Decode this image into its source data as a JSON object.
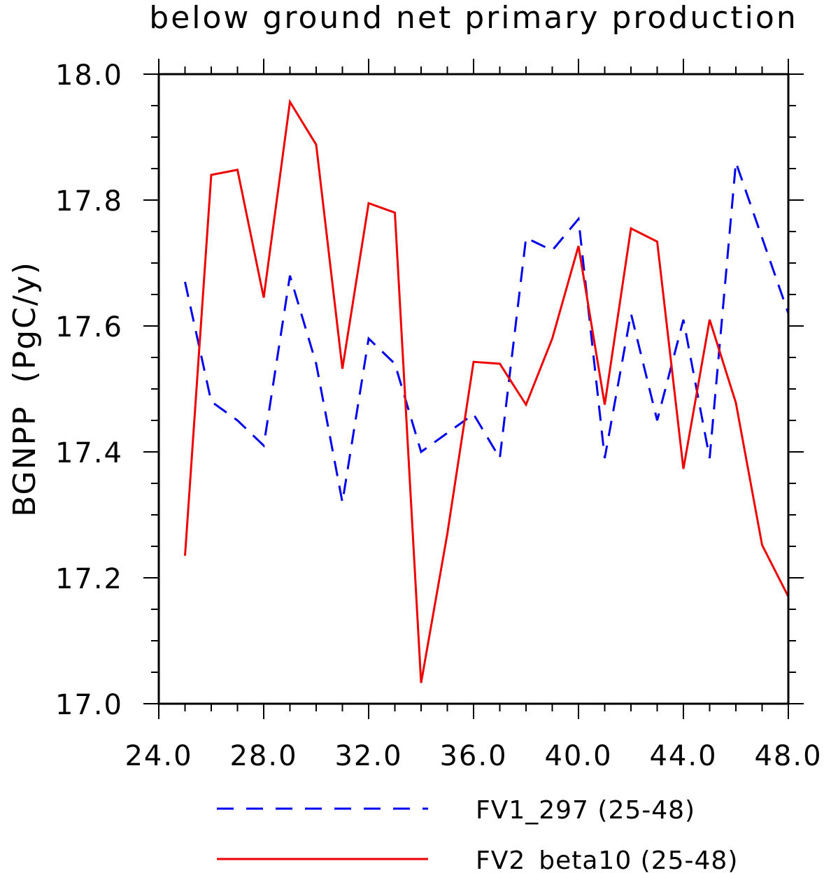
{
  "chart_data": {
    "type": "line",
    "title": "below ground net primary production",
    "ylabel": "BGNPP  (PgC/y)",
    "xlabel": "",
    "xlim": [
      24,
      48
    ],
    "ylim": [
      17.0,
      18.0
    ],
    "x_ticks": [
      "24.0",
      "28.0",
      "32.0",
      "36.0",
      "40.0",
      "44.0",
      "48.0"
    ],
    "y_ticks": [
      "17.0",
      "17.2",
      "17.4",
      "17.6",
      "17.8",
      "18.0"
    ],
    "x_tick_values": [
      24,
      28,
      32,
      36,
      40,
      44,
      48
    ],
    "y_tick_values": [
      17.0,
      17.2,
      17.4,
      17.6,
      17.8,
      18.0
    ],
    "x": [
      25,
      26,
      27,
      28,
      29,
      30,
      31,
      32,
      33,
      34,
      35,
      36,
      37,
      38,
      39,
      40,
      41,
      42,
      43,
      44,
      45,
      46,
      47,
      48
    ],
    "series": [
      {
        "name": "FV1_297 (25-48)",
        "color": "#0000ee",
        "style": "dashed",
        "values": [
          17.67,
          17.48,
          17.45,
          17.41,
          17.68,
          17.54,
          17.32,
          17.58,
          17.54,
          17.4,
          17.43,
          17.46,
          17.39,
          17.74,
          17.72,
          17.77,
          17.39,
          17.62,
          17.45,
          17.61,
          17.39,
          17.86,
          17.74,
          17.62
        ]
      },
      {
        "name": "FV2_beta10 (25-48)",
        "color": "#ee0000",
        "style": "solid",
        "values": [
          17.235,
          17.84,
          17.848,
          17.645,
          17.956,
          17.888,
          17.532,
          17.795,
          17.78,
          17.033,
          17.27,
          17.543,
          17.54,
          17.475,
          17.58,
          17.727,
          17.475,
          17.755,
          17.734,
          17.373,
          17.61,
          17.478,
          17.252,
          17.17
        ]
      }
    ],
    "legend_position": "bottom"
  }
}
